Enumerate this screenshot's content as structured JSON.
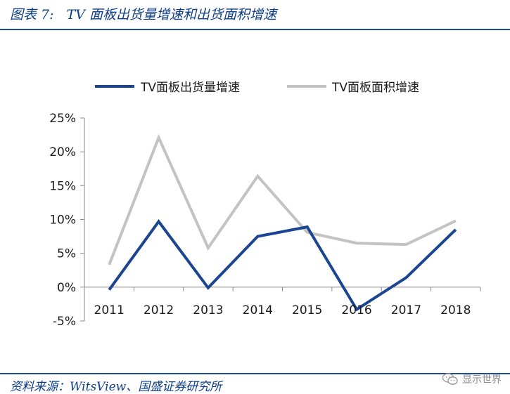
{
  "header": {
    "figure_num": "图表 7:",
    "title": "TV 面板出货量增速和出货面积增速"
  },
  "footer": {
    "source": "资料来源：WitsView、国盛证券研究所",
    "watermark": "显示世界"
  },
  "colors": {
    "header_blue": "#0e3f88",
    "series_1": "#1a4591",
    "series_2": "#c3c3c3",
    "axis": "#8a8a8a"
  },
  "chart_data": {
    "type": "line",
    "title": "",
    "xlabel": "",
    "ylabel": "",
    "categories": [
      "2011",
      "2012",
      "2013",
      "2014",
      "2015",
      "2016",
      "2017",
      "2018"
    ],
    "y_ticks": [
      "-5%",
      "0%",
      "5%",
      "10%",
      "15%",
      "20%",
      "25%"
    ],
    "y_tick_values": [
      -5,
      0,
      5,
      10,
      15,
      20,
      25
    ],
    "ylim": [
      -5,
      25
    ],
    "grid": false,
    "legend_position": "top",
    "series": [
      {
        "name": "TV面板出货量增速",
        "color": "#1a4591",
        "values": [
          -0.4,
          9.7,
          -0.1,
          7.5,
          8.9,
          -3.3,
          1.4,
          8.5
        ]
      },
      {
        "name": "TV面板面积增速",
        "color": "#c3c3c3",
        "values": [
          3.3,
          22.1,
          5.8,
          16.4,
          8.1,
          6.5,
          6.3,
          9.8
        ]
      }
    ]
  }
}
